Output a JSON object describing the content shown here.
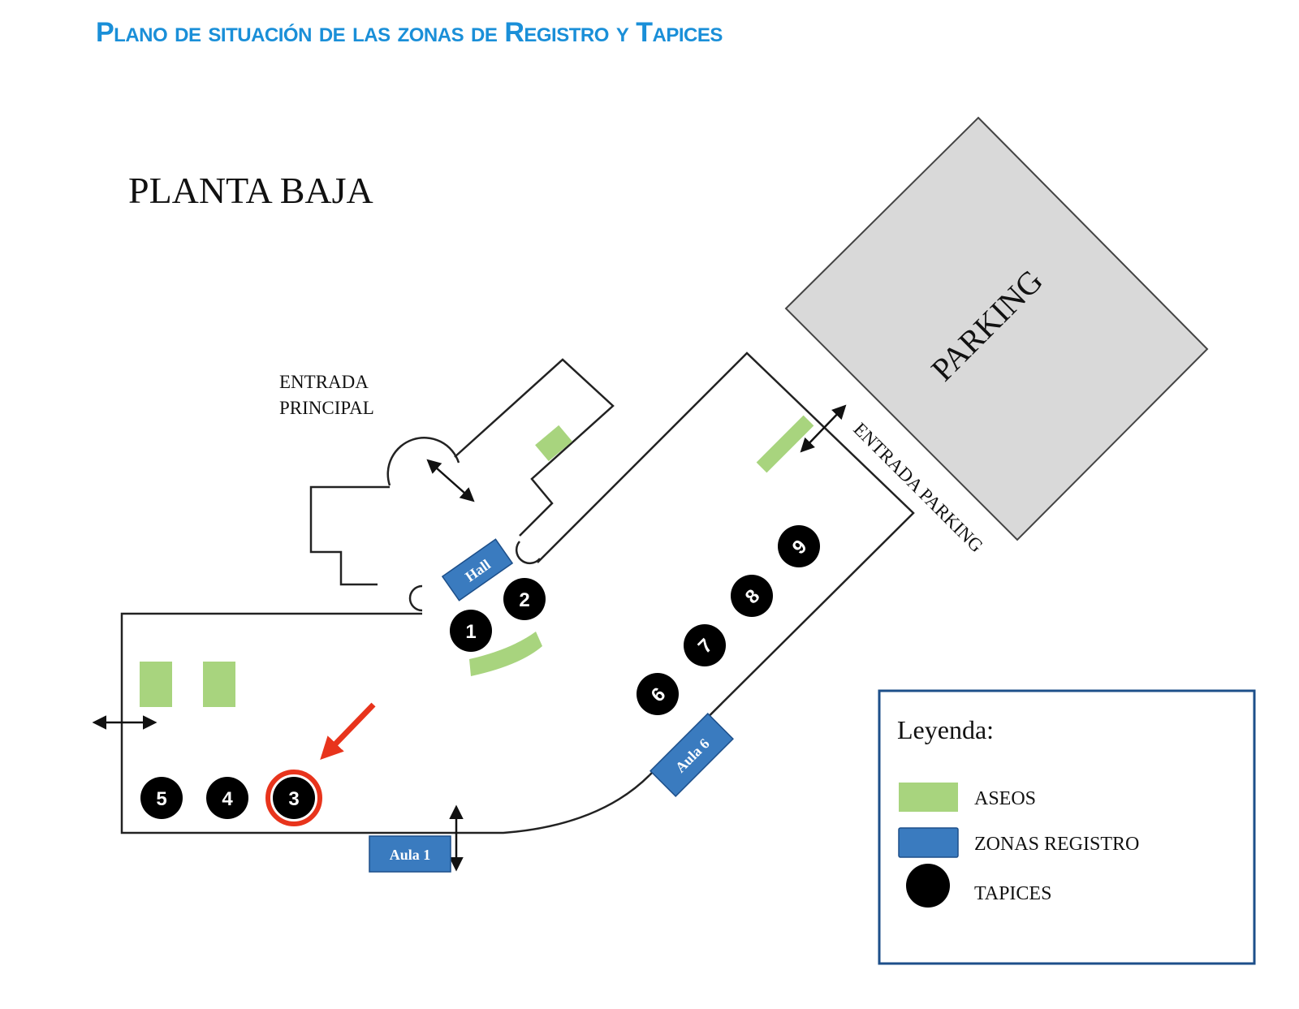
{
  "header": {
    "title": "Plano de situación de las zonas de Registro y Tapices",
    "title_color": "#1a8fd8"
  },
  "map": {
    "floor_label": "PLANTA BAJA",
    "entrance_main_line1": "ENTRADA",
    "entrance_main_line2": "PRINCIPAL",
    "parking_label": "PARKING",
    "entrance_parking": "ENTRADA PARKING",
    "registration_zones": [
      {
        "label": "Hall"
      },
      {
        "label": "Aula 6"
      },
      {
        "label": "Aula 1"
      }
    ],
    "tapestries": [
      {
        "number": "1"
      },
      {
        "number": "2"
      },
      {
        "number": "3",
        "highlighted": true
      },
      {
        "number": "4"
      },
      {
        "number": "5"
      },
      {
        "number": "6"
      },
      {
        "number": "7"
      },
      {
        "number": "8"
      },
      {
        "number": "9"
      }
    ],
    "colors": {
      "toilets": "#a8d47e",
      "registration": "#3a7bbf",
      "tapestry": "#000000",
      "parking": "#d9d9d9",
      "highlight": "#e8341c"
    }
  },
  "legend": {
    "title": "Leyenda:",
    "items": [
      {
        "icon": "toilet-swatch",
        "label": "ASEOS"
      },
      {
        "icon": "registration-swatch",
        "label": "ZONAS REGISTRO"
      },
      {
        "icon": "tapestry-dot",
        "label": "TAPICES"
      }
    ]
  }
}
